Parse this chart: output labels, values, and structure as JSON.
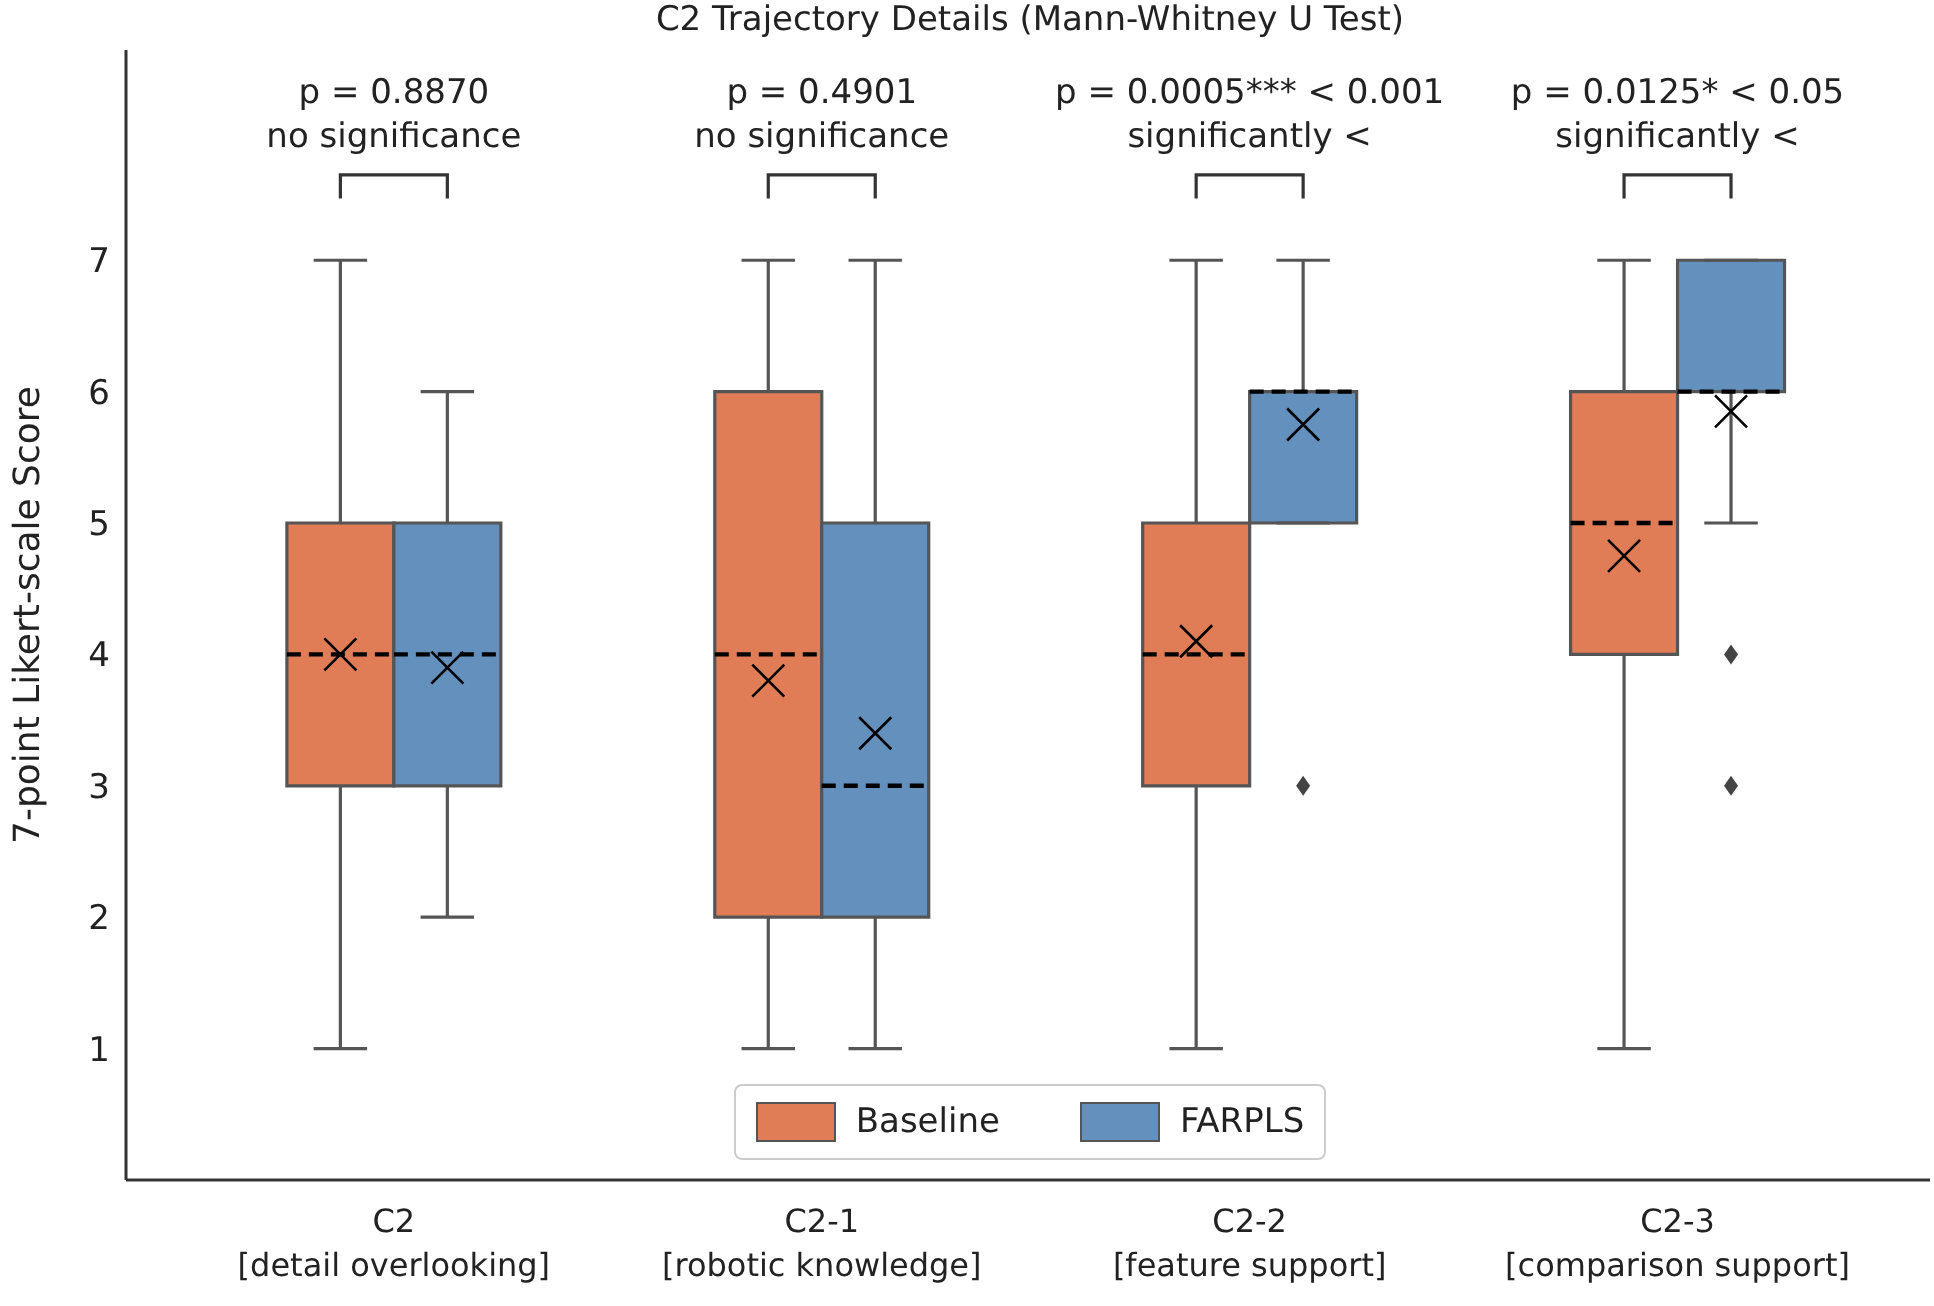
{
  "chart_data": {
    "type": "box",
    "title": "C2 Trajectory Details (Mann-Whitney U Test)",
    "ylabel": "7-point Likert-scale Score",
    "categories": [
      "C2\n[detail overlooking]",
      "C2-1\n[robotic knowledge]",
      "C2-2\n[feature support]",
      "C2-3\n[comparison support]"
    ],
    "ylim": [
      0,
      8.6
    ],
    "yticks": [
      1,
      2,
      3,
      4,
      5,
      6,
      7
    ],
    "legend": "bottom",
    "marker": "cross",
    "series": [
      {
        "name": "Baseline",
        "color": "#e07d56",
        "boxes": [
          {
            "low": 1,
            "q1": 3,
            "median": 4,
            "q3": 5,
            "high": 7,
            "mean": 4.0
          },
          {
            "low": 1,
            "q1": 2,
            "median": 4,
            "q3": 6,
            "high": 7,
            "mean": 3.8
          },
          {
            "low": 1,
            "q1": 3,
            "median": 4,
            "q3": 5,
            "high": 7,
            "mean": 4.1
          },
          {
            "low": 1,
            "q1": 4,
            "median": 5,
            "q3": 6,
            "high": 7,
            "mean": 4.75
          }
        ]
      },
      {
        "name": "FARPLS",
        "color": "#6490bd",
        "boxes": [
          {
            "low": 2,
            "q1": 3,
            "median": 4,
            "q3": 5,
            "high": 6,
            "mean": 3.9
          },
          {
            "low": 1,
            "q1": 2,
            "median": 3,
            "q3": 5,
            "high": 7,
            "mean": 3.4
          },
          {
            "low": 5,
            "q1": 5,
            "median": 6,
            "q3": 6,
            "high": 7,
            "mean": 5.75,
            "outliers": [
              3
            ]
          },
          {
            "low": 5,
            "q1": 6,
            "median": 6,
            "q3": 7,
            "high": 7,
            "mean": 5.85,
            "outliers": [
              4,
              3
            ]
          }
        ]
      }
    ],
    "annotations": [
      "p = 0.8870\nno significance",
      "p = 0.4901\nno significance",
      "p = 0.0005*** < 0.001\nsignificantly <",
      "p = 0.0125* < 0.05\nsignificantly <"
    ]
  }
}
